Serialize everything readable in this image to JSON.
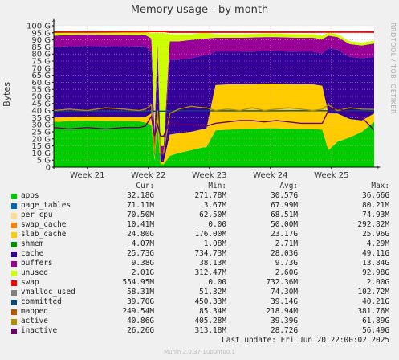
{
  "title": "Memory usage - by month",
  "side_label": "RRDTOOL / TOBI OETIKER",
  "footer": "Last update: Fri Jun 20 22:00:02 2025",
  "munin_version": "Munin 2.0.37-1ubuntu0.1",
  "legend_header": {
    "cur": "Cur:",
    "min": "Min:",
    "avg": "Avg:",
    "max": "Max:"
  },
  "legend": [
    {
      "name": "apps",
      "color": "#00cc00",
      "cur": "32.18G",
      "min": "271.78M",
      "avg": "30.57G",
      "max": "36.66G"
    },
    {
      "name": "page_tables",
      "color": "#0066b3",
      "cur": "71.11M",
      "min": "3.67M",
      "avg": "67.99M",
      "max": "80.21M"
    },
    {
      "name": "per_cpu",
      "color": "#ffdd88",
      "cur": "70.50M",
      "min": "62.50M",
      "avg": "68.51M",
      "max": "74.93M"
    },
    {
      "name": "swap_cache",
      "color": "#ff8000",
      "cur": "10.41M",
      "min": "0.00",
      "avg": "50.00M",
      "max": "292.82M"
    },
    {
      "name": "slab_cache",
      "color": "#ffcc00",
      "cur": "24.80G",
      "min": "176.00M",
      "avg": "23.17G",
      "max": "25.96G"
    },
    {
      "name": "shmem",
      "color": "#008f00",
      "cur": "4.07M",
      "min": "1.08M",
      "avg": "2.71M",
      "max": "4.29M"
    },
    {
      "name": "cache",
      "color": "#330099",
      "cur": "25.73G",
      "min": "734.73M",
      "avg": "28.03G",
      "max": "49.11G"
    },
    {
      "name": "buffers",
      "color": "#990099",
      "cur": "9.38G",
      "min": "38.13M",
      "avg": "9.73G",
      "max": "13.84G"
    },
    {
      "name": "unused",
      "color": "#ccff00",
      "cur": "2.01G",
      "min": "312.47M",
      "avg": "2.60G",
      "max": "92.98G"
    },
    {
      "name": "swap",
      "color": "#ff0000",
      "cur": "554.95M",
      "min": "0.00",
      "avg": "732.36M",
      "max": "2.00G"
    },
    {
      "name": "vmalloc_used",
      "color": "#808080",
      "cur": "58.31M",
      "min": "51.32M",
      "avg": "74.30M",
      "max": "102.72M"
    },
    {
      "name": "committed",
      "color": "#00487d",
      "cur": "39.70G",
      "min": "450.33M",
      "avg": "39.14G",
      "max": "40.21G"
    },
    {
      "name": "mapped",
      "color": "#b35a00",
      "cur": "249.54M",
      "min": "85.34M",
      "avg": "218.94M",
      "max": "381.76M"
    },
    {
      "name": "active",
      "color": "#b38f00",
      "cur": "40.86G",
      "min": "405.28M",
      "avg": "39.39G",
      "max": "61.89G"
    },
    {
      "name": "inactive",
      "color": "#6b006b",
      "cur": "26.26G",
      "min": "313.18M",
      "avg": "28.72G",
      "max": "56.49G"
    }
  ],
  "chart_data": {
    "type": "area",
    "title": "Memory usage - by month",
    "ylabel": "Bytes",
    "ylim": [
      0,
      100
    ],
    "yticks": [
      "0",
      "5 G",
      "10 G",
      "15 G",
      "20 G",
      "25 G",
      "30 G",
      "35 G",
      "40 G",
      "45 G",
      "50 G",
      "55 G",
      "60 G",
      "65 G",
      "70 G",
      "75 G",
      "80 G",
      "85 G",
      "90 G",
      "95 G",
      "100 G"
    ],
    "xlim": [
      20.45,
      25.7
    ],
    "xticks": [
      {
        "x": 21,
        "label": "Week 21"
      },
      {
        "x": 22,
        "label": "Week 22"
      },
      {
        "x": 23,
        "label": "Week 23"
      },
      {
        "x": 24,
        "label": "Week 24"
      },
      {
        "x": 25,
        "label": "Week 25"
      }
    ],
    "x": [
      20.45,
      20.7,
      21.0,
      21.3,
      21.6,
      21.85,
      21.95,
      22.05,
      22.1,
      22.15,
      22.2,
      22.25,
      22.35,
      22.5,
      22.7,
      22.9,
      22.95,
      23.1,
      23.3,
      23.5,
      23.7,
      23.9,
      24.1,
      24.3,
      24.5,
      24.7,
      24.85,
      24.95,
      25.1,
      25.3,
      25.5,
      25.7
    ],
    "stack": [
      {
        "name": "apps",
        "color": "#00cc00",
        "values": [
          32,
          32.5,
          32.8,
          32.6,
          32.5,
          32.4,
          31.5,
          30,
          5,
          30,
          2,
          2,
          8,
          10,
          12,
          14,
          14,
          26,
          26.5,
          27,
          27.2,
          27.5,
          27.5,
          27.2,
          27,
          27,
          26.5,
          12,
          18,
          21,
          25,
          32
        ]
      },
      {
        "name": "slab_cache",
        "color": "#ffcc00",
        "values": [
          3,
          3,
          3,
          3,
          3,
          3,
          4,
          8,
          2,
          10,
          2,
          2,
          15,
          14,
          13,
          13,
          13,
          32,
          32,
          31.5,
          31.5,
          31.5,
          31.5,
          31.5,
          31.5,
          31.5,
          31,
          26,
          20,
          13,
          8,
          6
        ]
      },
      {
        "name": "cache",
        "color": "#330099",
        "values": [
          50,
          50,
          50,
          50,
          50,
          50,
          50,
          43,
          10,
          40,
          5,
          5,
          53,
          52,
          52,
          52,
          52,
          23.5,
          23,
          23,
          23,
          23,
          23,
          23,
          23,
          23,
          23,
          46,
          45,
          44,
          44,
          40
        ]
      },
      {
        "name": "buffers",
        "color": "#990099",
        "values": [
          8,
          8,
          8,
          8,
          8,
          8,
          8,
          10,
          8,
          8,
          6,
          6,
          13,
          13,
          13,
          12,
          12,
          10,
          10,
          10,
          10,
          10,
          10,
          10,
          10,
          10,
          10,
          9,
          9,
          9,
          9,
          9.4
        ]
      },
      {
        "name": "unused",
        "color": "#ccff00",
        "values": [
          2,
          2,
          2,
          2,
          2,
          2,
          2,
          4,
          70,
          7,
          80,
          80,
          5,
          5,
          4,
          4,
          4,
          2.5,
          2.5,
          2.5,
          2.5,
          2.5,
          2.5,
          2.5,
          2.5,
          2.5,
          2.5,
          2,
          2,
          2,
          2,
          2
        ]
      }
    ],
    "lines": [
      {
        "name": "committed",
        "color": "#00487d",
        "values": [
          39.5,
          39.6,
          39.6,
          39.6,
          39.6,
          39.6,
          39.6,
          39.6,
          39.6,
          39.6,
          39.6,
          39.6,
          39.8,
          39.8,
          39.8,
          39.8,
          39.8,
          39.8,
          39.8,
          39.8,
          39.8,
          39.8,
          39.8,
          39.9,
          39.9,
          39.9,
          39.9,
          39.9,
          39.9,
          39.9,
          39.9,
          39.7
        ]
      },
      {
        "name": "active",
        "color": "#b38f00",
        "values": [
          40,
          41,
          40,
          42,
          41,
          40,
          41,
          44,
          10,
          40,
          10,
          10,
          38,
          41,
          43,
          42,
          42,
          40,
          41,
          40,
          42,
          40,
          41,
          42,
          41,
          40,
          41,
          44,
          40,
          42,
          41,
          40.9
        ]
      },
      {
        "name": "inactive",
        "color": "#6b006b",
        "values": [
          28,
          27,
          28,
          27,
          28,
          28,
          29,
          36,
          22,
          30,
          22,
          22,
          32,
          30,
          30,
          29,
          29,
          31,
          32,
          33,
          33,
          32,
          33,
          32,
          31,
          31,
          31,
          40,
          42,
          38,
          35,
          26.3
        ]
      },
      {
        "name": "swap",
        "color": "#ff0000",
        "values": [
          95.5,
          95.6,
          95.6,
          95.7,
          95.8,
          95.8,
          95.9,
          96,
          96,
          96,
          96,
          96,
          95.5,
          95.5,
          95.5,
          95.5,
          95.5,
          95.5,
          95.5,
          95.5,
          95.5,
          95.5,
          95.5,
          95.5,
          95.5,
          95.5,
          95.6,
          95.6,
          95.6,
          95.6,
          95.6,
          95.5
        ]
      }
    ]
  }
}
